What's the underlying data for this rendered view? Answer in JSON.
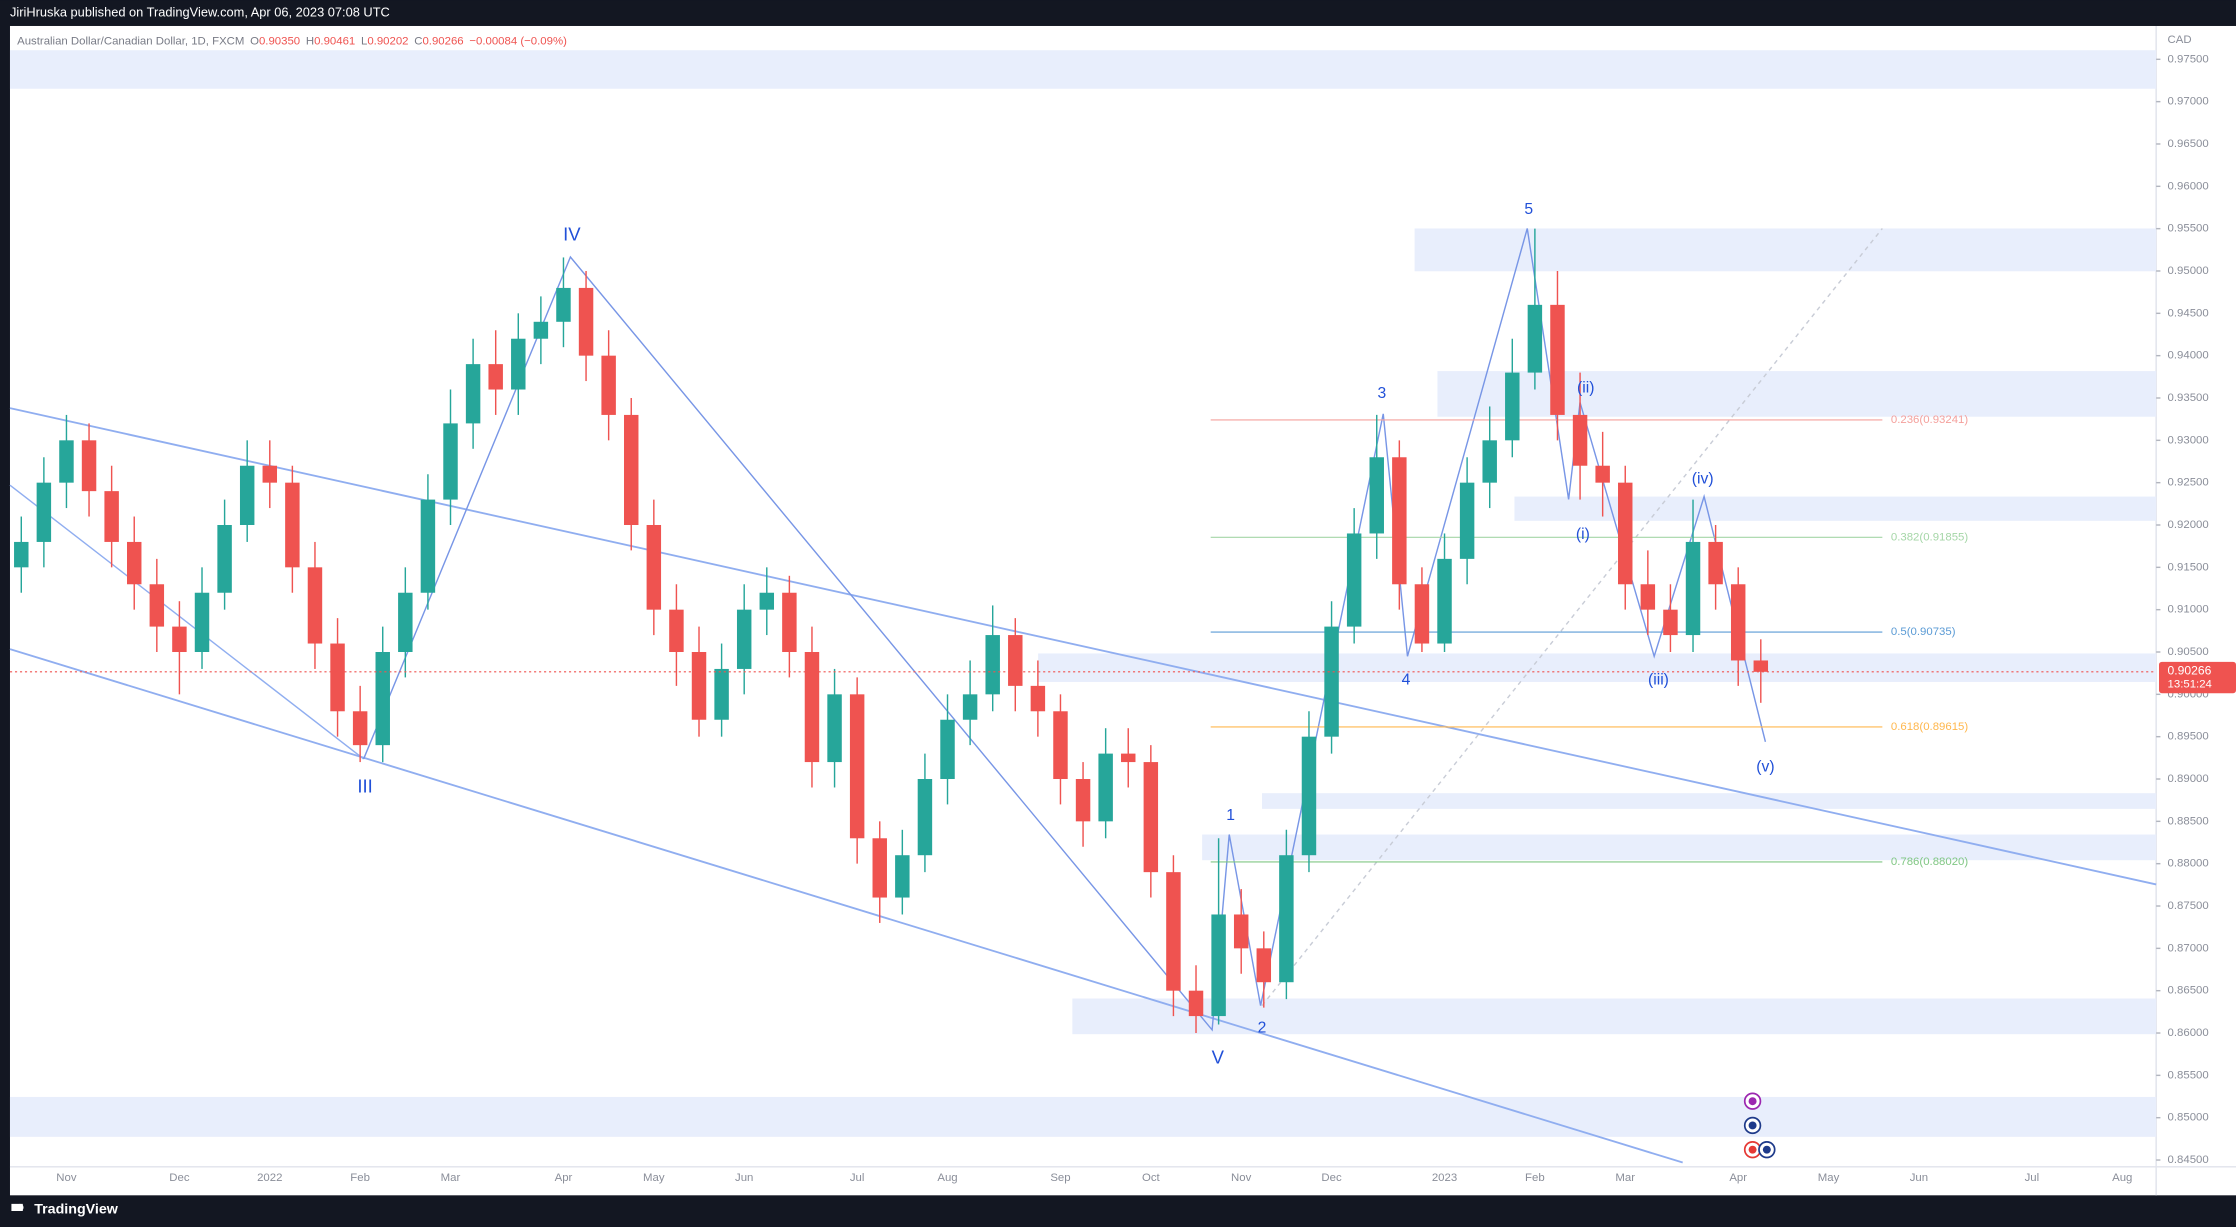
{
  "header": {
    "publisher": "JiriHruska published on TradingView.com, Apr 06, 2023 07:08 UTC"
  },
  "footer": {
    "brand": "TradingView"
  },
  "chart_data": {
    "type": "candlestick",
    "title": "Australian Dollar/Canadian Dollar, 1D, FXCM",
    "quote": [
      {
        "key": "O",
        "value": "0.90350"
      },
      {
        "key": "H",
        "value": "0.90461"
      },
      {
        "key": "L",
        "value": "0.90202"
      },
      {
        "key": "C",
        "value": "0.90266"
      }
    ],
    "change": "−0.00084 (−0.09%)",
    "currency": "CAD",
    "last_price": {
      "label": "0.90266",
      "countdown": "13:51:24"
    },
    "up_color": "#26a69a",
    "down_color": "#ef5350",
    "grid": false,
    "categories": [
      null,
      null,
      "Nov",
      null,
      null,
      null,
      null,
      "Dec",
      null,
      null,
      null,
      "2022",
      null,
      null,
      null,
      "Feb",
      null,
      null,
      null,
      "Mar",
      null,
      null,
      null,
      null,
      "Apr",
      null,
      null,
      null,
      "May",
      null,
      null,
      null,
      "Jun",
      null,
      null,
      null,
      null,
      "Jul",
      null,
      null,
      null,
      "Aug",
      null,
      null,
      null,
      null,
      "Sep",
      null,
      null,
      null,
      "Oct",
      null,
      null,
      null,
      "Nov",
      null,
      null,
      null,
      "Dec",
      null,
      null,
      null,
      null,
      "2023",
      null,
      null,
      null,
      "Feb",
      null,
      null,
      null,
      "Mar",
      null,
      null,
      null,
      null,
      "Apr",
      null,
      null,
      null,
      "May",
      null,
      null,
      null,
      "Jun",
      null,
      null,
      null,
      null,
      "Jul",
      null,
      null,
      null,
      "Aug",
      null
    ],
    "open": [
      0.915,
      0.918,
      0.925,
      0.93,
      0.924,
      0.918,
      0.913,
      0.908,
      0.905,
      0.912,
      0.92,
      0.927,
      0.925,
      0.915,
      0.906,
      0.898,
      0.894,
      0.905,
      0.912,
      0.923,
      0.932,
      0.939,
      0.936,
      0.942,
      0.944,
      0.948,
      0.94,
      0.933,
      0.92,
      0.91,
      0.905,
      0.897,
      0.903,
      0.91,
      0.912,
      0.905,
      0.892,
      0.9,
      0.883,
      0.876,
      0.881,
      0.89,
      0.897,
      0.9,
      0.907,
      0.901,
      0.898,
      0.89,
      0.885,
      0.893,
      0.892,
      0.879,
      0.865,
      0.862,
      0.874,
      0.87,
      0.866,
      0.881,
      0.895,
      0.908,
      0.919,
      0.928,
      0.913,
      0.906,
      0.916,
      0.925,
      0.93,
      0.938,
      0.946,
      0.933,
      0.927,
      0.925,
      0.913,
      0.91,
      0.907,
      0.918,
      0.913,
      0.904,
      null,
      null,
      null,
      null,
      null,
      null,
      null,
      null,
      null,
      null,
      null,
      null,
      null,
      null,
      null,
      null,
      null
    ],
    "high": [
      0.921,
      0.928,
      0.933,
      0.932,
      0.927,
      0.921,
      0.916,
      0.911,
      0.915,
      0.923,
      0.93,
      0.93,
      0.927,
      0.918,
      0.909,
      0.901,
      0.908,
      0.915,
      0.926,
      0.936,
      0.942,
      0.943,
      0.945,
      0.947,
      0.9516,
      0.95,
      0.943,
      0.935,
      0.923,
      0.913,
      0.908,
      0.906,
      0.913,
      0.915,
      0.914,
      0.908,
      0.903,
      0.902,
      0.885,
      0.884,
      0.893,
      0.9,
      0.904,
      0.9105,
      0.909,
      0.904,
      0.9,
      0.892,
      0.896,
      0.896,
      0.894,
      0.881,
      0.868,
      0.883,
      0.877,
      0.872,
      0.884,
      0.898,
      0.911,
      0.922,
      0.933,
      0.93,
      0.915,
      0.919,
      0.928,
      0.934,
      0.942,
      0.955,
      0.95,
      0.938,
      0.931,
      0.927,
      0.917,
      0.913,
      0.923,
      0.92,
      0.915,
      0.9065,
      null,
      null,
      null,
      null,
      null,
      null,
      null,
      null,
      null,
      null,
      null,
      null,
      null,
      null,
      null,
      null,
      null
    ],
    "low": [
      0.912,
      0.915,
      0.922,
      0.921,
      0.915,
      0.91,
      0.905,
      0.9,
      0.903,
      0.91,
      0.918,
      0.922,
      0.912,
      0.903,
      0.895,
      0.892,
      0.892,
      0.902,
      0.91,
      0.92,
      0.929,
      0.933,
      0.933,
      0.939,
      0.941,
      0.937,
      0.93,
      0.917,
      0.907,
      0.901,
      0.895,
      0.895,
      0.9,
      0.907,
      0.902,
      0.889,
      0.889,
      0.88,
      0.873,
      0.874,
      0.879,
      0.887,
      0.894,
      0.898,
      0.898,
      0.895,
      0.887,
      0.882,
      0.883,
      0.889,
      0.876,
      0.862,
      0.86,
      0.861,
      0.867,
      0.863,
      0.864,
      0.879,
      0.893,
      0.906,
      0.916,
      0.91,
      0.905,
      0.905,
      0.913,
      0.922,
      0.928,
      0.936,
      0.93,
      0.923,
      0.921,
      0.91,
      0.907,
      0.905,
      0.905,
      0.91,
      0.901,
      0.899,
      null,
      null,
      null,
      null,
      null,
      null,
      null,
      null,
      null,
      null,
      null,
      null,
      null,
      null,
      null,
      null,
      null
    ],
    "close": [
      0.918,
      0.925,
      0.93,
      0.924,
      0.918,
      0.913,
      0.908,
      0.905,
      0.912,
      0.92,
      0.927,
      0.925,
      0.915,
      0.906,
      0.898,
      0.894,
      0.905,
      0.912,
      0.923,
      0.932,
      0.939,
      0.936,
      0.942,
      0.944,
      0.948,
      0.94,
      0.933,
      0.92,
      0.91,
      0.905,
      0.897,
      0.903,
      0.91,
      0.912,
      0.905,
      0.892,
      0.9,
      0.883,
      0.876,
      0.881,
      0.89,
      0.897,
      0.9,
      0.907,
      0.901,
      0.898,
      0.89,
      0.885,
      0.893,
      0.892,
      0.879,
      0.865,
      0.862,
      0.874,
      0.87,
      0.866,
      0.881,
      0.895,
      0.908,
      0.919,
      0.928,
      0.913,
      0.906,
      0.916,
      0.925,
      0.93,
      0.938,
      0.946,
      0.933,
      0.927,
      0.925,
      0.913,
      0.91,
      0.907,
      0.918,
      0.913,
      0.904,
      0.90266,
      null,
      null,
      null,
      null,
      null,
      null,
      null,
      null,
      null,
      null,
      null,
      null,
      null,
      null,
      null,
      null,
      null
    ],
    "ylim": [
      0.8442,
      0.9786
    ],
    "yticks": [
      {
        "value": 0.845,
        "label": "0.84500"
      },
      {
        "value": 0.85,
        "label": "0.85000"
      },
      {
        "value": 0.855,
        "label": "0.85500"
      },
      {
        "value": 0.86,
        "label": "0.86000"
      },
      {
        "value": 0.865,
        "label": "0.86500"
      },
      {
        "value": 0.87,
        "label": "0.87000"
      },
      {
        "value": 0.875,
        "label": "0.87500"
      },
      {
        "value": 0.88,
        "label": "0.88000"
      },
      {
        "value": 0.885,
        "label": "0.88500"
      },
      {
        "value": 0.89,
        "label": "0.89000"
      },
      {
        "value": 0.895,
        "label": "0.89500"
      },
      {
        "value": 0.9,
        "label": "0.90000"
      },
      {
        "value": 0.905,
        "label": "0.90500"
      },
      {
        "value": 0.91,
        "label": "0.91000"
      },
      {
        "value": 0.915,
        "label": "0.91500"
      },
      {
        "value": 0.92,
        "label": "0.92000"
      },
      {
        "value": 0.925,
        "label": "0.92500"
      },
      {
        "value": 0.93,
        "label": "0.93000"
      },
      {
        "value": 0.935,
        "label": "0.93500"
      },
      {
        "value": 0.94,
        "label": "0.94000"
      },
      {
        "value": 0.945,
        "label": "0.94500"
      },
      {
        "value": 0.95,
        "label": "0.95000"
      },
      {
        "value": 0.955,
        "label": "0.95500"
      },
      {
        "value": 0.96,
        "label": "0.96000"
      },
      {
        "value": 0.965,
        "label": "0.96500"
      },
      {
        "value": 0.97,
        "label": "0.97000"
      },
      {
        "value": 0.975,
        "label": "0.97500"
      }
    ],
    "fib_levels": [
      {
        "label": "0.236(0.93241)",
        "value": 0.93241,
        "color": "#f4a09c"
      },
      {
        "label": "0.382(0.91855)",
        "value": 0.91855,
        "color": "#a5d6a7"
      },
      {
        "label": "0.5(0.90735)",
        "value": 0.90735,
        "color": "#5b9bd5"
      },
      {
        "label": "0.618(0.89615)",
        "value": 0.89615,
        "color": "#ffb74d"
      },
      {
        "label": "0.786(0.88020)",
        "value": 0.8802,
        "color": "#81c784"
      }
    ],
    "annotations": [
      "IV",
      "III",
      "V",
      "1",
      "2",
      "3",
      "4",
      "5",
      "(i)",
      "(ii)",
      "(iii)",
      "(iv)",
      "(v)"
    ]
  }
}
